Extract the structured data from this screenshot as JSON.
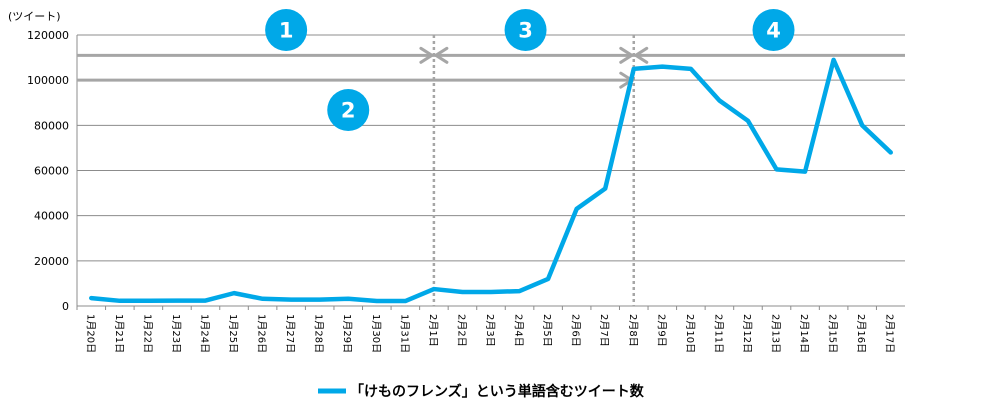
{
  "chart_data": {
    "type": "line",
    "title": "",
    "xlabel": "",
    "ylabel": "(ツイート)",
    "ylim": [
      0,
      120000
    ],
    "yticks": [
      "0",
      "20000",
      "40000",
      "60000",
      "80000",
      "100000",
      "120000"
    ],
    "grid": true,
    "legend_position": "bottom",
    "categories": [
      "1月20日",
      "1月21日",
      "1月22日",
      "1月23日",
      "1月24日",
      "1月25日",
      "1月26日",
      "1月27日",
      "1月28日",
      "1月29日",
      "1月30日",
      "1月31日",
      "2月1日",
      "2月2日",
      "2月3日",
      "2月4日",
      "2月5日",
      "2月6日",
      "2月7日",
      "2月8日",
      "2月9日",
      "2月10日",
      "2月11日",
      "2月12日",
      "2月13日",
      "2月14日",
      "2月15日",
      "2月16日",
      "2月17日"
    ],
    "series": [
      {
        "name": "「けものフレンズ」という単語含むツイート数",
        "color": "#00a8e8",
        "values": [
          3500,
          2300,
          2300,
          2400,
          2400,
          5700,
          3200,
          2800,
          2800,
          3200,
          2200,
          2200,
          7500,
          6200,
          6200,
          6600,
          12000,
          43000,
          52000,
          105000,
          106000,
          105000,
          91000,
          82000,
          60500,
          59500,
          109000,
          80000,
          68000
        ]
      }
    ],
    "annotations": {
      "badge_color": "#00a8e8",
      "line_color": "#a6a6a6",
      "badges": [
        "1",
        "2",
        "3",
        "4"
      ],
      "reference_lines": [
        {
          "level": 111000,
          "from": "1月20日",
          "to": "2月17日",
          "arrows_at": [
            "2月1日",
            "2月8日"
          ]
        },
        {
          "level": 100000,
          "from": "1月20日",
          "to": "2月8日",
          "arrows_at": [
            "2月8日"
          ]
        }
      ],
      "dividers": [
        "2月1日",
        "2月8日"
      ]
    }
  }
}
